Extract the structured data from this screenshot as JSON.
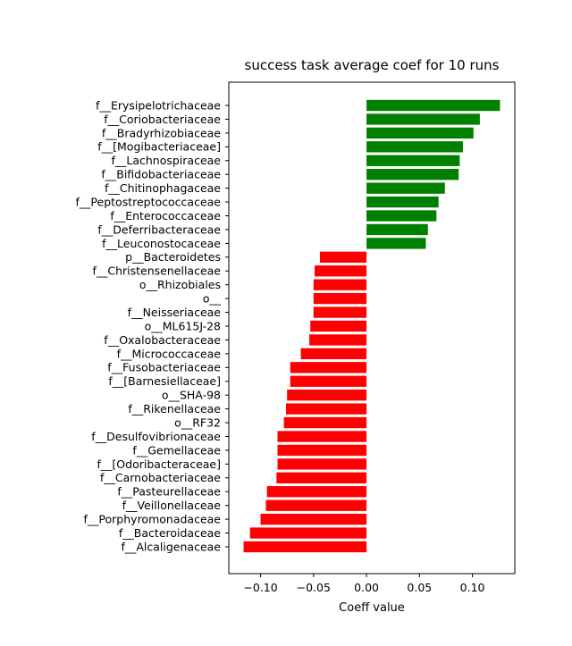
{
  "chart_data": {
    "type": "bar",
    "orientation": "horizontal",
    "title": "success task average coef for 10 runs",
    "xlabel": "Coeff value",
    "ylabel": "",
    "xlim": [
      -0.13,
      0.14
    ],
    "xticks": [
      "−0.10",
      "−0.05",
      "0.00",
      "0.05",
      "0.10"
    ],
    "xtick_values": [
      -0.1,
      -0.05,
      0.0,
      0.05,
      0.1
    ],
    "grid": false,
    "colors": {
      "positive": "#008000",
      "negative": "#ff0000"
    },
    "categories": [
      "f__Erysipelotrichaceae",
      "f__Coriobacteriaceae",
      "f__Bradyrhizobiaceae",
      "f__[Mogibacteriaceae]",
      "f__Lachnospiraceae",
      "f__Bifidobacteriaceae",
      "f__Chitinophagaceae",
      "f__Peptostreptococcaceae",
      "f__Enterococcaceae",
      "f__Deferribacteraceae",
      "f__Leuconostocaceae",
      "p__Bacteroidetes",
      "f__Christensenellaceae",
      "o__Rhizobiales",
      "o__",
      "f__Neisseriaceae",
      "o__ML615J-28",
      "f__Oxalobacteraceae",
      "f__Micrococcaceae",
      "f__Fusobacteriaceae",
      "f__[Barnesiellaceae]",
      "o__SHA-98",
      "f__Rikenellaceae",
      "o__RF32",
      "f__Desulfovibrionaceae",
      "f__Gemellaceae",
      "f__[Odoribacteraceae]",
      "f__Carnobacteriaceae",
      "f__Pasteurellaceae",
      "f__Veillonellaceae",
      "f__Porphyromonadaceae",
      "f__Bacteroidaceae",
      "f__Alcaligenaceae"
    ],
    "values": [
      0.126,
      0.107,
      0.101,
      0.091,
      0.088,
      0.087,
      0.074,
      0.068,
      0.066,
      0.058,
      0.056,
      -0.044,
      -0.049,
      -0.05,
      -0.05,
      -0.05,
      -0.053,
      -0.054,
      -0.062,
      -0.072,
      -0.072,
      -0.075,
      -0.076,
      -0.078,
      -0.084,
      -0.084,
      -0.084,
      -0.085,
      -0.094,
      -0.095,
      -0.1,
      -0.11,
      -0.116
    ]
  }
}
